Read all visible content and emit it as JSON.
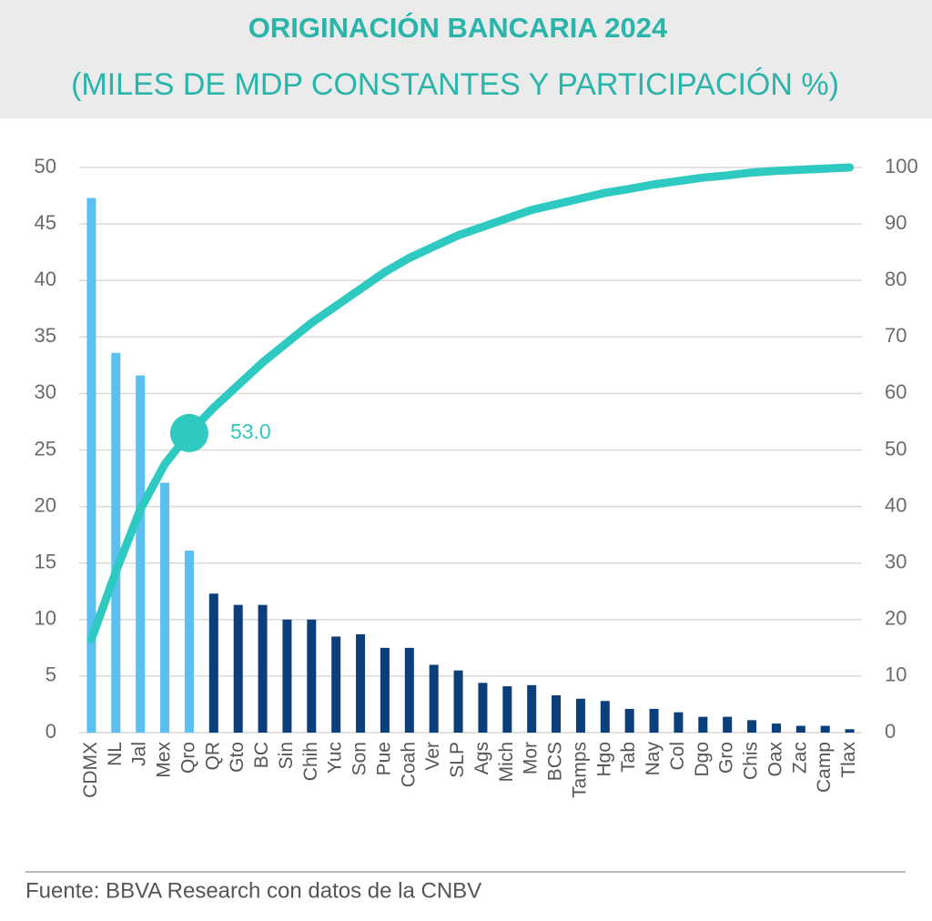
{
  "chart_data": {
    "type": "combo",
    "title": "ORIGINACIÓN BANCARIA 2024",
    "subtitle": "(MILES DE MDP CONSTANTES Y PARTICIPACIÓN %)",
    "source": "Fuente: BBVA Research con datos de la CNBV",
    "categories": [
      "CDMX",
      "NL",
      "Jal",
      "Mex",
      "Qro",
      "QR",
      "Gto",
      "BC",
      "Sin",
      "Chih",
      "Yuc",
      "Son",
      "Pue",
      "Coah",
      "Ver",
      "SLP",
      "Ags",
      "Mich",
      "Mor",
      "BCS",
      "Tamps",
      "Hgo",
      "Tab",
      "Nay",
      "Col",
      "Dgo",
      "Gro",
      "Chis",
      "Oax",
      "Zac",
      "Camp",
      "Tlax"
    ],
    "values": [
      47.3,
      33.6,
      31.6,
      22.1,
      16.1,
      12.3,
      11.3,
      11.3,
      10.0,
      10.0,
      8.5,
      8.7,
      7.5,
      7.5,
      6.0,
      5.5,
      4.4,
      4.1,
      4.2,
      3.3,
      3.0,
      2.8,
      2.1,
      2.1,
      1.8,
      1.4,
      1.4,
      1.1,
      0.8,
      0.6,
      0.6,
      0.3
    ],
    "colors": [
      "#5bbff0",
      "#5bbff0",
      "#5bbff0",
      "#5bbff0",
      "#5bbff0",
      "#0b3f7c",
      "#0b3f7c",
      "#0b3f7c",
      "#0b3f7c",
      "#0b3f7c",
      "#0b3f7c",
      "#0b3f7c",
      "#0b3f7c",
      "#0b3f7c",
      "#0b3f7c",
      "#0b3f7c",
      "#0b3f7c",
      "#0b3f7c",
      "#0b3f7c",
      "#0b3f7c",
      "#0b3f7c",
      "#0b3f7c",
      "#0b3f7c",
      "#0b3f7c",
      "#0b3f7c",
      "#0b3f7c",
      "#0b3f7c",
      "#0b3f7c",
      "#0b3f7c",
      "#0b3f7c",
      "#0b3f7c",
      "#0b3f7c"
    ],
    "line": {
      "axis": "y2",
      "color": "#2ec9c0",
      "values": [
        16.5,
        28.5,
        39.5,
        47.5,
        53.0,
        57.5,
        61.5,
        65.5,
        69,
        72.5,
        75.5,
        78.5,
        81.5,
        84,
        86,
        88,
        89.5,
        91,
        92.5,
        93.5,
        94.5,
        95.5,
        96.2,
        97,
        97.6,
        98.2,
        98.6,
        99.1,
        99.4,
        99.6,
        99.8,
        100
      ],
      "value_labels": [
        null,
        null,
        null,
        null,
        "53.0",
        null,
        null,
        null,
        null,
        null,
        null,
        null,
        null,
        null,
        null,
        null,
        null,
        null,
        null,
        null,
        null,
        null,
        null,
        null,
        null,
        null,
        null,
        null,
        null,
        null,
        null,
        null
      ]
    },
    "ylim": [
      0,
      50
    ],
    "yticks": [
      0,
      5,
      10,
      15,
      20,
      25,
      30,
      35,
      40,
      45,
      50
    ],
    "y2lim": [
      0,
      100
    ],
    "y2ticks": [
      0,
      10,
      20,
      30,
      40,
      50,
      60,
      70,
      80,
      90,
      100
    ],
    "grid": true
  }
}
